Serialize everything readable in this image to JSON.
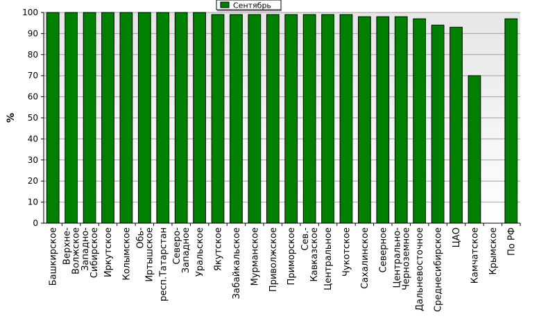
{
  "chart_data": {
    "type": "bar",
    "title": "",
    "xlabel": "",
    "ylabel": "%",
    "ylim": [
      0,
      100
    ],
    "yticks": [
      0,
      10,
      20,
      30,
      40,
      50,
      60,
      70,
      80,
      90,
      100
    ],
    "grid": true,
    "legend": "top-center",
    "categories": [
      "Башкирское",
      "Верхне-Волжское",
      "Западно-Сибирское",
      "Иркутское",
      "Колымское",
      "Обь-Иртышское",
      "респ.Татарстан",
      "Северо-Западное",
      "Уральское",
      "Якутское",
      "Забайкальское",
      "Мурманское",
      "Приволжское",
      "Приморское",
      "Сев.-Кавказское",
      "Центральное",
      "Чукотское",
      "Сахалинское",
      "Северное",
      "Центрально-Черноземное",
      "Дальневосточное",
      "Среднесибирское",
      "ЦАО",
      "Камчатское",
      "Крымское",
      "По РФ"
    ],
    "series": [
      {
        "name": "Сентябрь",
        "color": "#008000",
        "values": [
          100,
          100,
          100,
          100,
          100,
          100,
          100,
          100,
          100,
          99,
          99,
          99,
          99,
          99,
          99,
          99,
          99,
          98,
          98,
          98,
          97,
          94,
          93,
          70,
          0,
          97
        ]
      }
    ]
  }
}
